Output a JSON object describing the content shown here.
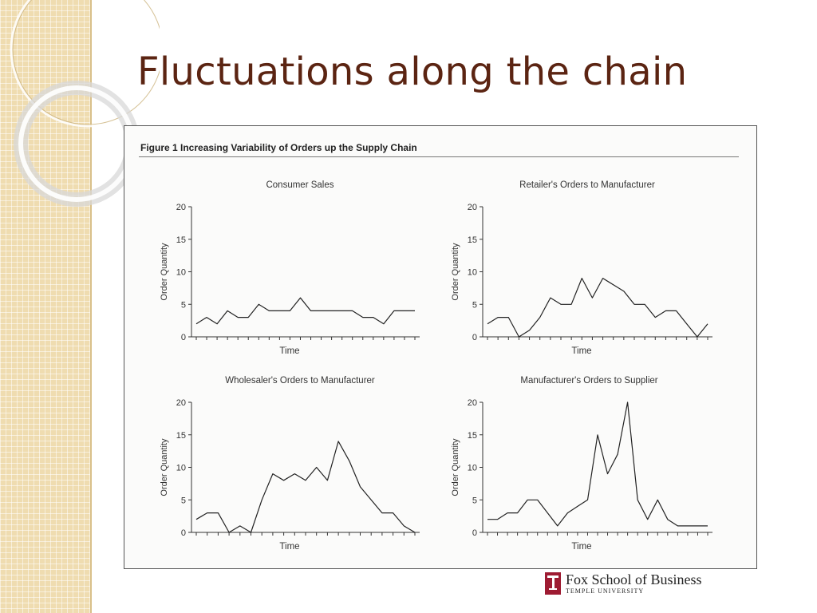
{
  "slide": {
    "title": "Fluctuations along the chain"
  },
  "figure": {
    "caption": "Figure 1   Increasing Variability of Orders up the Supply Chain"
  },
  "logo": {
    "name": "Fox School of Business",
    "subtitle": "TEMPLE UNIVERSITY"
  },
  "chart_data": [
    {
      "type": "line",
      "title": "Consumer Sales",
      "xlabel": "Time",
      "ylabel": "Order Quantity",
      "ylim": [
        0,
        20
      ],
      "yticks": [
        0,
        5,
        10,
        15,
        20
      ],
      "series": [
        {
          "values": [
            2,
            3,
            2,
            4,
            3,
            3,
            5,
            4,
            4,
            4,
            6,
            4,
            4,
            4,
            4,
            4,
            3,
            3,
            2,
            4,
            4,
            4
          ]
        }
      ]
    },
    {
      "type": "line",
      "title": "Retailer's Orders to Manufacturer",
      "xlabel": "Time",
      "ylabel": "Order Quantity",
      "ylim": [
        0,
        20
      ],
      "yticks": [
        0,
        5,
        10,
        15,
        20
      ],
      "series": [
        {
          "values": [
            2,
            3,
            3,
            0,
            1,
            3,
            6,
            5,
            5,
            9,
            6,
            9,
            8,
            7,
            5,
            5,
            3,
            4,
            4,
            2,
            0,
            2
          ]
        }
      ]
    },
    {
      "type": "line",
      "title": "Wholesaler's Orders to Manufacturer",
      "xlabel": "Time",
      "ylabel": "Order Quantity",
      "ylim": [
        0,
        20
      ],
      "yticks": [
        0,
        5,
        10,
        15,
        20
      ],
      "series": [
        {
          "values": [
            2,
            3,
            3,
            0,
            1,
            0,
            5,
            9,
            8,
            9,
            8,
            10,
            8,
            14,
            11,
            7,
            5,
            3,
            3,
            1,
            0
          ]
        }
      ]
    },
    {
      "type": "line",
      "title": "Manufacturer's Orders to Supplier",
      "xlabel": "Time",
      "ylabel": "Order Quantity",
      "ylim": [
        0,
        20
      ],
      "yticks": [
        0,
        5,
        10,
        15,
        20
      ],
      "series": [
        {
          "values": [
            2,
            2,
            3,
            3,
            5,
            5,
            3,
            1,
            3,
            4,
            5,
            15,
            9,
            12,
            20,
            5,
            2,
            5,
            2,
            1,
            1,
            1,
            1
          ]
        }
      ]
    }
  ]
}
